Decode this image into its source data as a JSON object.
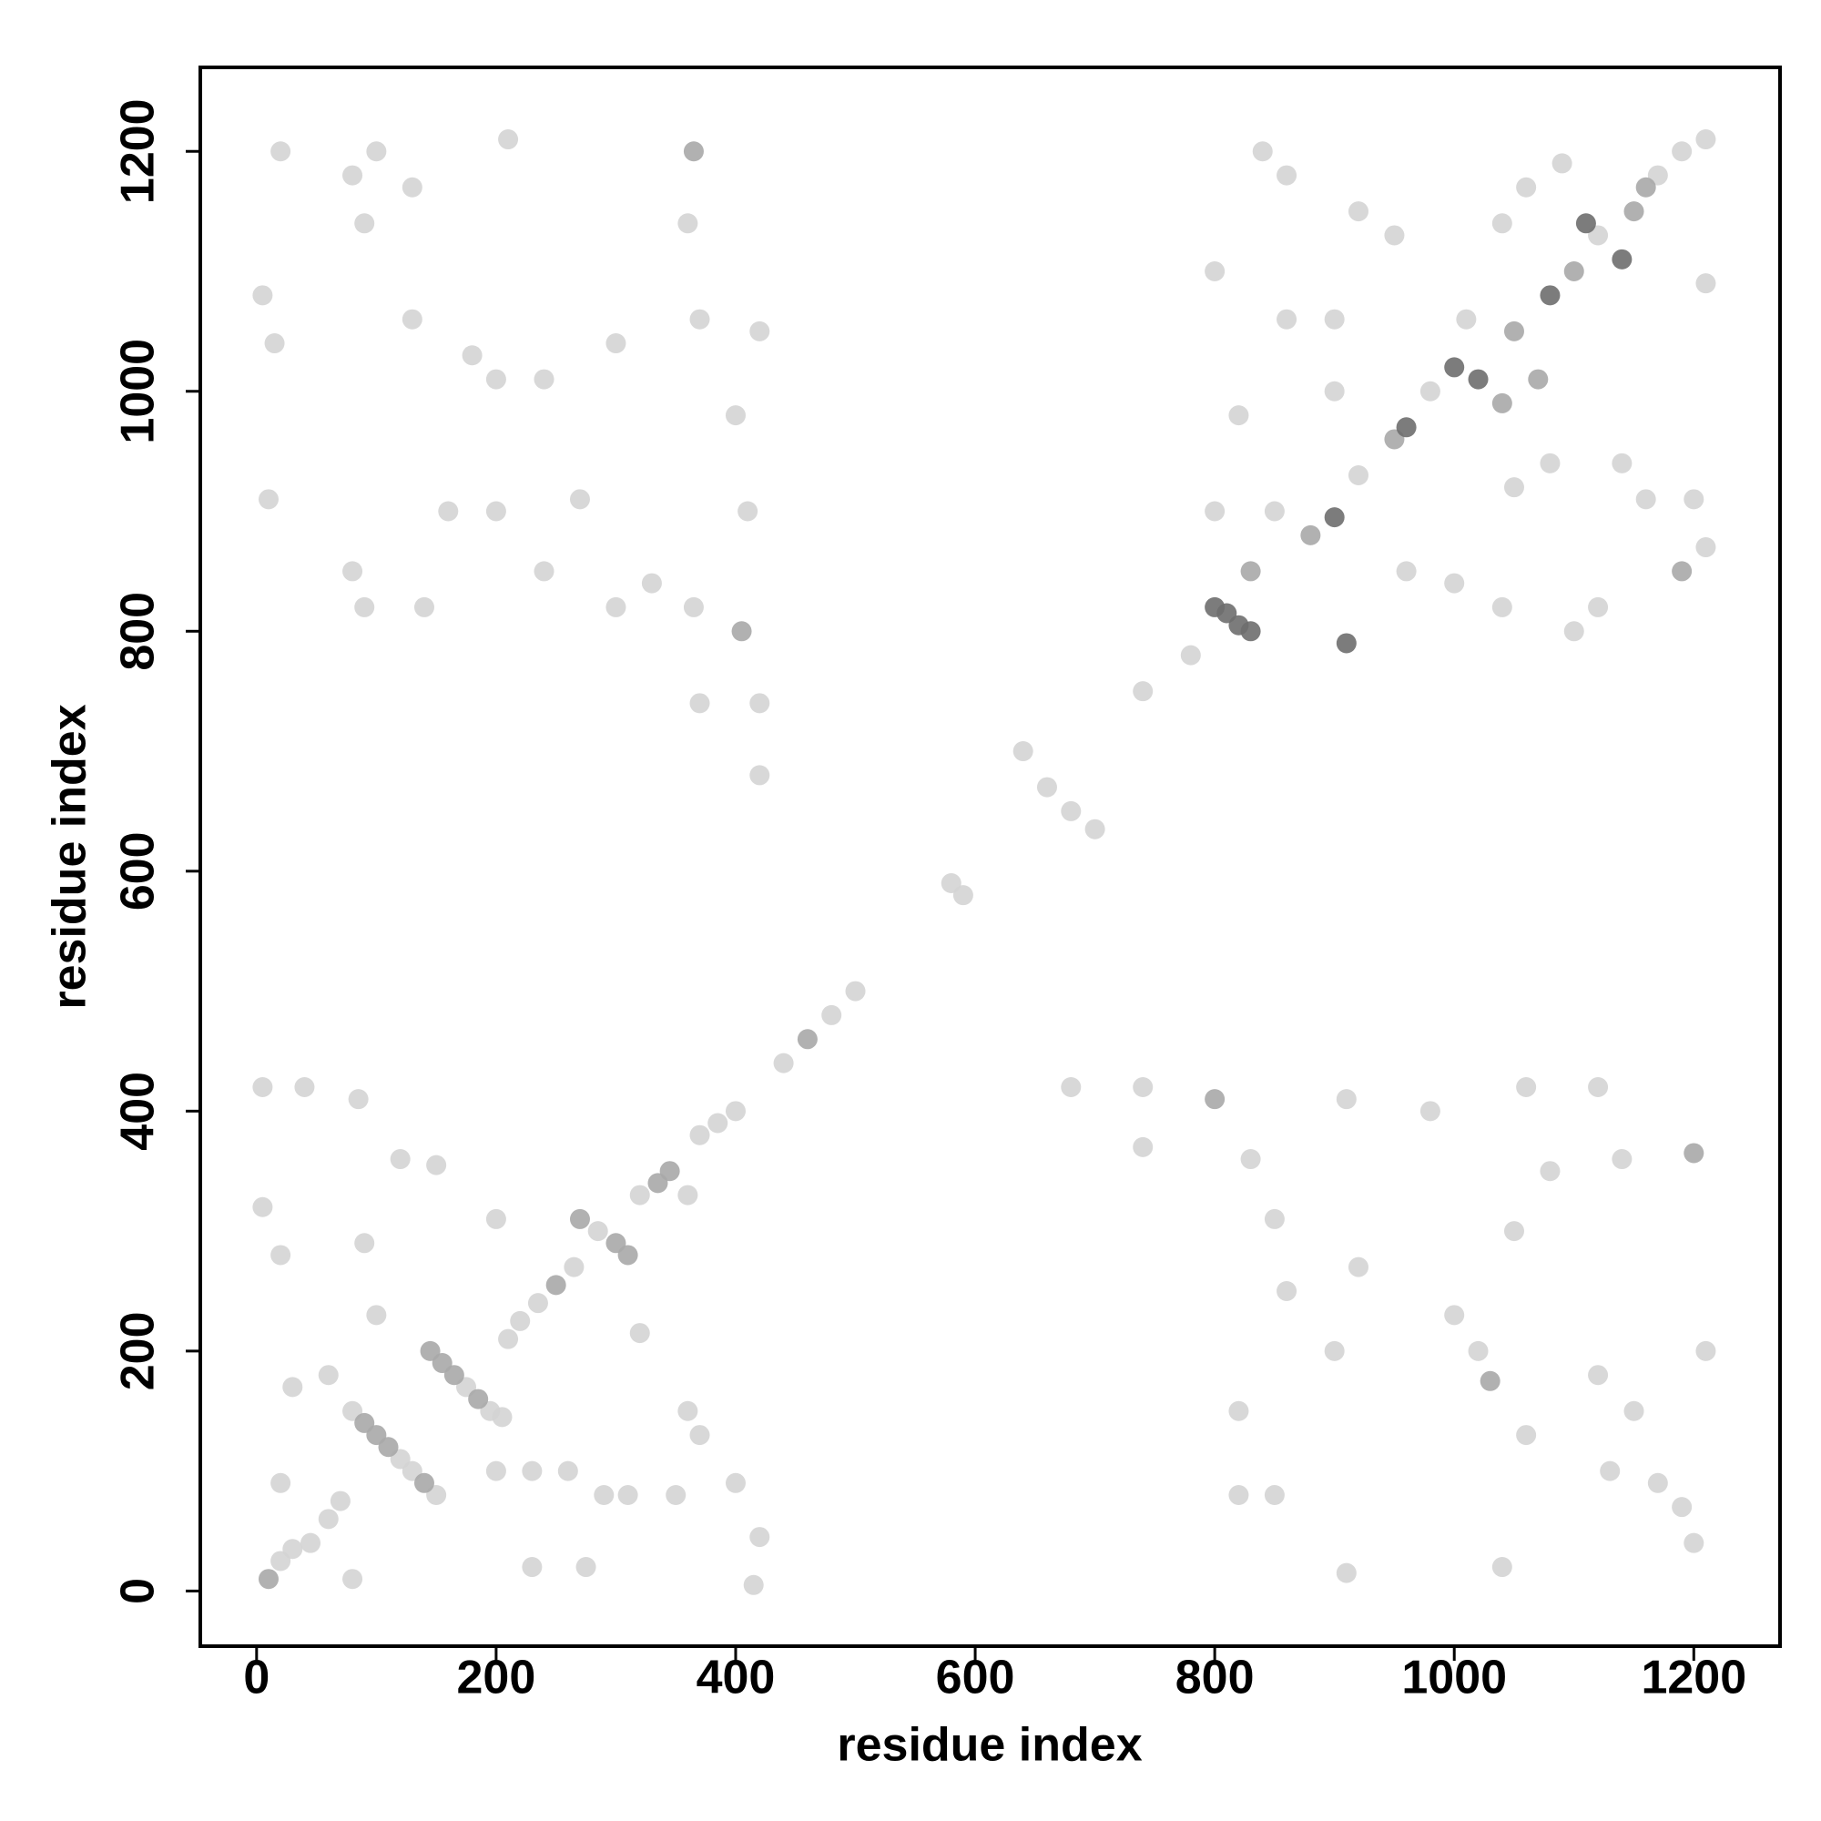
{
  "chart_data": {
    "type": "scatter",
    "x_label": "residue index",
    "y_label": "residue index",
    "xlim": [
      -47,
      1272
    ],
    "ylim": [
      -46,
      1270
    ],
    "xticks": [
      0,
      200,
      400,
      600,
      800,
      1000,
      1200
    ],
    "yticks": [
      0,
      200,
      400,
      600,
      800,
      1000,
      1200
    ],
    "grid": false,
    "series": [
      {
        "color": "#d4d4d4",
        "x": [
          20,
          30,
          45,
          60,
          70,
          80,
          120,
          130,
          150,
          175,
          195,
          205,
          210,
          220,
          235,
          265,
          285,
          320,
          360,
          370,
          385,
          400,
          440,
          480,
          500,
          580,
          590,
          640,
          660,
          680,
          700,
          740,
          780,
          800,
          850,
          920,
          980,
          1010,
          1120,
          1170,
          1190,
          1210,
          5,
          15,
          20,
          80,
          90,
          100,
          130,
          180,
          200,
          210,
          240,
          270,
          300,
          360,
          370,
          400,
          410,
          420,
          10,
          80,
          90,
          140,
          160,
          240,
          300,
          330,
          365,
          370,
          420,
          420,
          130,
          200,
          830,
          850,
          860,
          900,
          910,
          920,
          980,
          1000,
          1020,
          1050,
          1060,
          1060,
          1080,
          1120,
          1130,
          1140,
          1150,
          1170,
          1210,
          1200,
          1040,
          820,
          850,
          820,
          910,
          1120,
          1190,
          740,
          680,
          740,
          5,
          20,
          40,
          5,
          85,
          90,
          100,
          60,
          20,
          30,
          80,
          120,
          150,
          200,
          200,
          230,
          260,
          290,
          310,
          360,
          370,
          400,
          420,
          415,
          230,
          275,
          320,
          350,
          800,
          840,
          860,
          900,
          920,
          950,
          1040,
          1060,
          1090,
          1210,
          1140,
          1160,
          1210,
          1200,
          1100,
          1120,
          1040,
          960,
          1000,
          860,
          1050,
          1080,
          900,
          820
        ],
        "values": [
          25,
          35,
          40,
          60,
          75,
          150,
          110,
          100,
          80,
          170,
          150,
          145,
          210,
          225,
          240,
          270,
          300,
          330,
          330,
          380,
          390,
          400,
          440,
          480,
          500,
          590,
          580,
          700,
          670,
          650,
          635,
          750,
          780,
          900,
          900,
          930,
          1000,
          1060,
          1130,
          1180,
          1200,
          1210,
          1080,
          1040,
          1200,
          1180,
          1140,
          1200,
          1060,
          1030,
          1010,
          1210,
          1010,
          910,
          1040,
          1140,
          1060,
          980,
          900,
          1050,
          910,
          850,
          820,
          820,
          900,
          850,
          820,
          840,
          820,
          740,
          740,
          680,
          1170,
          900,
          360,
          310,
          250,
          200,
          410,
          270,
          400,
          230,
          200,
          300,
          130,
          420,
          350,
          180,
          100,
          360,
          150,
          90,
          200,
          40,
          20,
          80,
          80,
          150,
          15,
          420,
          70,
          370,
          420,
          420,
          320,
          280,
          420,
          420,
          410,
          290,
          230,
          180,
          90,
          170,
          10,
          360,
          355,
          310,
          100,
          100,
          100,
          80,
          80,
          150,
          130,
          90,
          45,
          5,
          20,
          20,
          215,
          80,
          1100,
          1200,
          1180,
          1060,
          1150,
          1130,
          1140,
          1170,
          1190,
          1090,
          940,
          910,
          870,
          910,
          800,
          820,
          820,
          850,
          840,
          1060,
          920,
          940,
          1000,
          980
        ]
      },
      {
        "color": "#a8a8a8",
        "x": [
          90,
          100,
          110,
          140,
          145,
          155,
          165,
          185,
          250,
          270,
          300,
          310,
          335,
          345,
          460,
          1040,
          1050,
          1070,
          1100,
          1150,
          1160,
          405,
          800,
          365,
          1200,
          1030,
          880,
          10,
          830,
          950,
          1190
        ],
        "values": [
          140,
          130,
          120,
          90,
          200,
          190,
          180,
          160,
          255,
          310,
          290,
          280,
          340,
          350,
          460,
          990,
          1050,
          1010,
          1100,
          1150,
          1170,
          800,
          410,
          1200,
          365,
          175,
          880,
          10,
          850,
          960,
          850
        ]
      },
      {
        "color": "#6e6e6e",
        "x": [
          800,
          810,
          820,
          830,
          1020,
          1110,
          1140,
          960,
          1000,
          1080,
          910,
          900
        ],
        "values": [
          820,
          815,
          805,
          800,
          1010,
          1140,
          1110,
          970,
          1020,
          1080,
          790,
          895
        ]
      }
    ]
  }
}
